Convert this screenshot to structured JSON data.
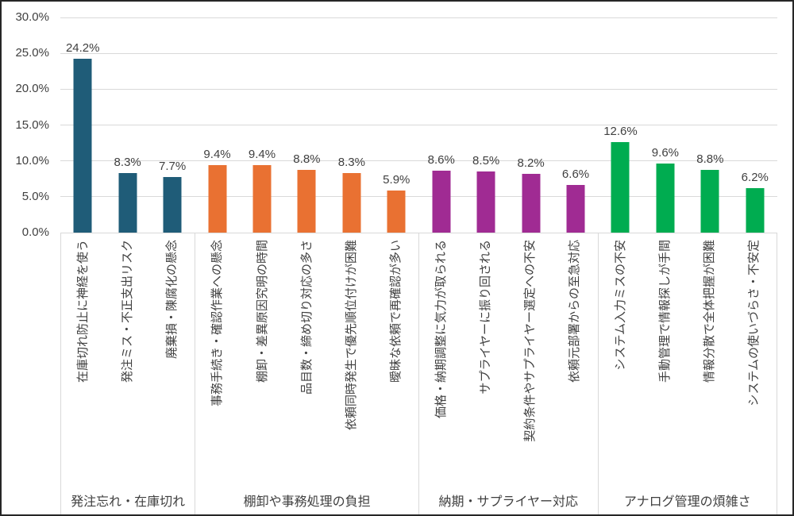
{
  "figure": {
    "background": "#FFFFFF",
    "border_color": "#262626",
    "gridline_color": "#D9D9D9",
    "text_color": "#404040"
  },
  "chart_data": {
    "type": "bar",
    "title": "",
    "xlabel": "",
    "ylabel": "",
    "ylim": [
      0,
      30
    ],
    "grid": true,
    "legend": false,
    "y_ticks": [
      "30.0%",
      "25.0%",
      "20.0%",
      "15.0%",
      "10.0%",
      "5.0%",
      "0.0%"
    ],
    "groups": [
      {
        "name": "発注忘れ・在庫切れ",
        "color": "#1F5C78",
        "items": [
          {
            "label": "在庫切れ防止に神経を使う",
            "value": 24.2,
            "display": "24.2%"
          },
          {
            "label": "発注ミス・不正支出リスク",
            "value": 8.3,
            "display": "8.3%"
          },
          {
            "label": "廃棄損・陳腐化の懸念",
            "value": 7.7,
            "display": "7.7%"
          }
        ]
      },
      {
        "name": "棚卸や事務処理の負担",
        "color": "#E97132",
        "items": [
          {
            "label": "事務手続き・確認作業への懸念",
            "value": 9.4,
            "display": "9.4%"
          },
          {
            "label": "棚卸・差異原因究明の時間",
            "value": 9.4,
            "display": "9.4%"
          },
          {
            "label": "品目数・締め切り対応の多さ",
            "value": 8.8,
            "display": "8.8%"
          },
          {
            "label": "依頼同時発生で優先順位付けが困難",
            "value": 8.3,
            "display": "8.3%"
          },
          {
            "label": "曖昧な依頼で再確認が多い",
            "value": 5.9,
            "display": "5.9%"
          }
        ]
      },
      {
        "name": "納期・サプライヤー対応",
        "color": "#A02B93",
        "items": [
          {
            "label": "価格・納期調整に気力が取られる",
            "value": 8.6,
            "display": "8.6%"
          },
          {
            "label": "サプライヤーに振り回される",
            "value": 8.5,
            "display": "8.5%"
          },
          {
            "label": "契約条件やサプライヤー選定への不安",
            "value": 8.2,
            "display": "8.2%"
          },
          {
            "label": "依頼元部署からの至急対応",
            "value": 6.6,
            "display": "6.6%"
          }
        ]
      },
      {
        "name": "アナログ管理の煩雑さ",
        "color": "#00AC50",
        "items": [
          {
            "label": "システム入力ミスの不安",
            "value": 12.6,
            "display": "12.6%"
          },
          {
            "label": "手動管理で情報探しが手間",
            "value": 9.6,
            "display": "9.6%"
          },
          {
            "label": "情報分散で全体把握が困難",
            "value": 8.8,
            "display": "8.8%"
          },
          {
            "label": "システムの使いづらさ・不安定",
            "value": 6.2,
            "display": "6.2%"
          }
        ]
      }
    ]
  }
}
